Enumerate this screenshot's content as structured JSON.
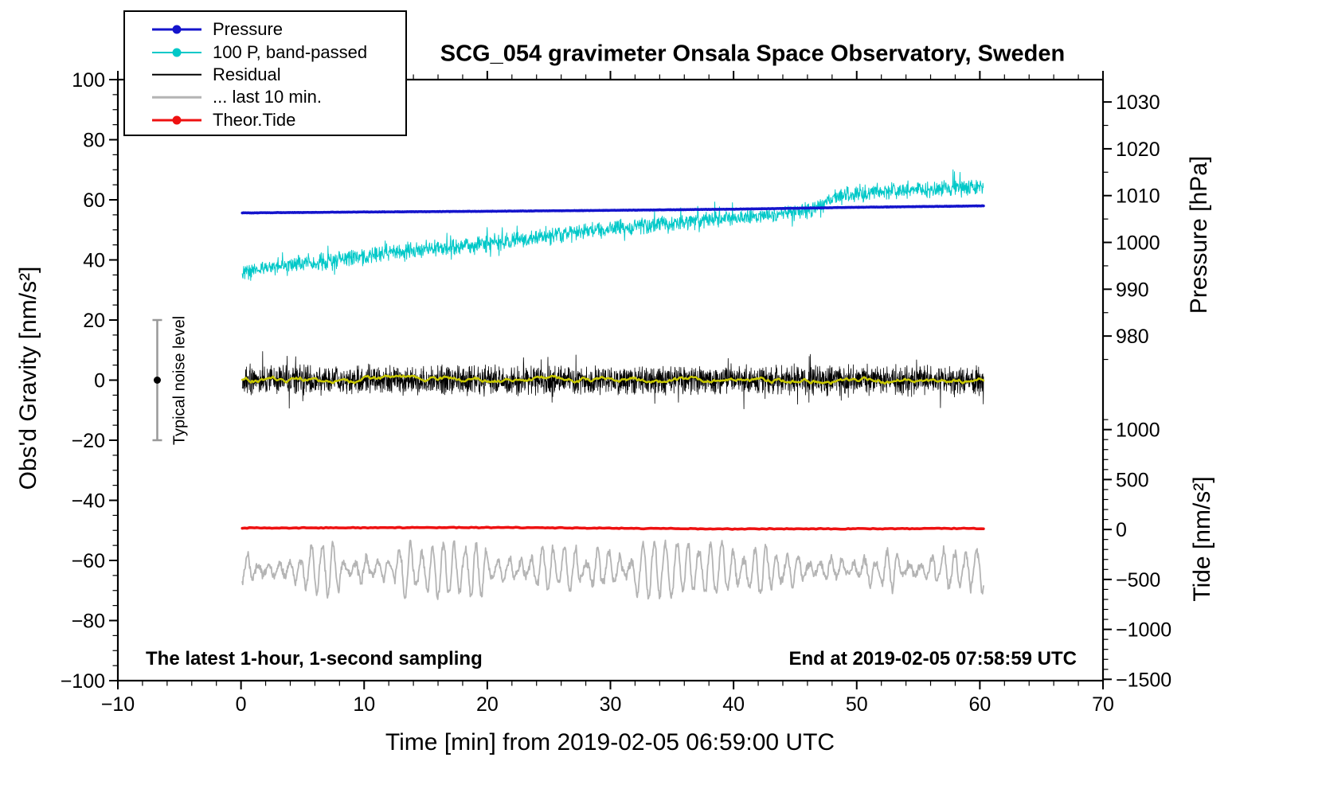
{
  "title": "SCG_054 gravimeter Onsala Space Observatory, Sweden",
  "annotations": {
    "sampling": "The latest 1-hour, 1-second sampling",
    "end_time": "End at 2019-02-05 07:58:59 UTC",
    "noise_label": "Typical noise level"
  },
  "legend": [
    {
      "label": "Pressure",
      "color": "#1414cc",
      "marker": "dot",
      "line_width": 3
    },
    {
      "label": "100 P, band-passed",
      "color": "#00c8c8",
      "marker": "dot",
      "line_width": 2
    },
    {
      "label": "Residual",
      "color": "#000000",
      "marker": "line",
      "line_width": 2.5
    },
    {
      "label": "... last 10 min.",
      "color": "#b4b4b4",
      "marker": "line",
      "line_width": 2.5
    },
    {
      "label": "Theor.Tide",
      "color": "#ee1111",
      "marker": "dot",
      "line_width": 3
    }
  ],
  "chart_data": {
    "type": "line",
    "title": "SCG_054 gravimeter Onsala Space Observatory, Sweden",
    "xlabel": "Time [min] from 2019-02-05 06:59:00 UTC",
    "ylabel_left": "Obs'd Gravity [nm/s²]",
    "ylabel_right_top": "Pressure [hPa]",
    "ylabel_right_bottom": "Tide [nm/s²]",
    "grid": false,
    "legend_position": "top-left",
    "x_axis": {
      "min": -10,
      "max": 70,
      "ticks": [
        -10,
        0,
        10,
        20,
        30,
        40,
        50,
        60,
        70
      ],
      "minor_step": 2,
      "unit": "min"
    },
    "y_axis_gravity": {
      "min": -100,
      "max": 100,
      "ticks": [
        -100,
        -80,
        -60,
        -40,
        -20,
        0,
        20,
        40,
        60,
        80,
        100
      ],
      "minor_step": 5,
      "unit": "nm/s²"
    },
    "y_axis_pressure": {
      "ticks": [
        1030,
        1020,
        1010,
        1000,
        990,
        980
      ],
      "minor_step": 5,
      "minor_range": [
        975,
        1030
      ],
      "ref_value": 1010,
      "ref_gravity": 61.4,
      "gravity_per_unit": 1.5577,
      "unit": "hPa"
    },
    "y_axis_tide": {
      "ticks": [
        1000,
        500,
        0,
        -500,
        -1000,
        -1500
      ],
      "minor_step": 100,
      "minor_range": [
        -1500,
        1100
      ],
      "ref_value": 0,
      "ref_gravity": -49.7,
      "gravity_per_unit": 0.03324,
      "unit": "nm/s²"
    },
    "noise_bar": {
      "x": -6.8,
      "center": 0,
      "half_height": 20,
      "color": "#999999",
      "dot_color": "#000000"
    },
    "series": [
      {
        "id": "band-passed-pressure",
        "name": "100 P, band-passed",
        "axis": "gravity",
        "color": "#00c8c8",
        "width": 1,
        "generator": "trend-noise",
        "step": 0.03,
        "noise": 3.2,
        "spike_prob": 0.04,
        "spike_amp": 4.5,
        "x_start": 0.1,
        "x_end": 60.3,
        "keypoints": [
          [
            0,
            36
          ],
          [
            4,
            38.5
          ],
          [
            8,
            40
          ],
          [
            12,
            42
          ],
          [
            16,
            44
          ],
          [
            20,
            45.5
          ],
          [
            24,
            47.5
          ],
          [
            28,
            49.5
          ],
          [
            32,
            51
          ],
          [
            36,
            52.5
          ],
          [
            40,
            54
          ],
          [
            43,
            55
          ],
          [
            45,
            56
          ],
          [
            47,
            57.5
          ],
          [
            48,
            61
          ],
          [
            50,
            62
          ],
          [
            53,
            63
          ],
          [
            56,
            63.5
          ],
          [
            60,
            64.5
          ]
        ]
      },
      {
        "id": "residual",
        "name": "Residual",
        "axis": "gravity",
        "color": "#000000",
        "width": 0.8,
        "generator": "trend-noise",
        "step": 0.02,
        "noise": 5.5,
        "spike_prob": 0.025,
        "spike_amp": 8,
        "x_start": 0.1,
        "x_end": 60.3,
        "keypoints": [
          [
            0,
            0
          ],
          [
            60,
            0
          ]
        ]
      },
      {
        "id": "residual-smoothed",
        "name": "Residual smoothed",
        "axis": "gravity",
        "color": "#c8c800",
        "width": 2.5,
        "generator": "ar",
        "ar": 0.9,
        "step": 0.1,
        "noise": 0.5,
        "x_start": 0.1,
        "x_end": 60.3,
        "keypoints": [
          [
            0,
            0
          ],
          [
            60,
            0
          ]
        ]
      },
      {
        "id": "residual-last-10-min",
        "name": "... last 10 min.",
        "axis": "gravity",
        "color": "#b4b4b4",
        "width": 1.8,
        "generator": "oscillator",
        "step": 0.04,
        "center": -63,
        "period": 0.9,
        "amp": 5,
        "amp_var": 2,
        "noise": 1.2,
        "x_start": 0.1,
        "x_end": 60.3
      },
      {
        "id": "theor-tide",
        "name": "Theor.Tide",
        "axis": "tide",
        "color": "#ee1111",
        "width": 3.5,
        "generator": "trend-noise",
        "step": 0.2,
        "noise": 5,
        "spike_prob": 0,
        "spike_amp": 0,
        "x_start": 0.1,
        "x_end": 60.3,
        "keypoints": [
          [
            0,
            15
          ],
          [
            20,
            20
          ],
          [
            40,
            5
          ],
          [
            60,
            10
          ]
        ]
      },
      {
        "id": "pressure",
        "name": "Pressure",
        "axis": "pressure",
        "color": "#1414cc",
        "width": 3.5,
        "generator": "trend-noise",
        "step": 0.05,
        "noise": 0.05,
        "spike_prob": 0,
        "spike_amp": 0,
        "x_start": 0.1,
        "x_end": 60.3,
        "keypoints": [
          [
            0,
            1006.3
          ],
          [
            10,
            1006.5
          ],
          [
            20,
            1006.65
          ],
          [
            30,
            1006.85
          ],
          [
            40,
            1007.1
          ],
          [
            50,
            1007.5
          ],
          [
            60,
            1007.8
          ]
        ]
      }
    ]
  }
}
